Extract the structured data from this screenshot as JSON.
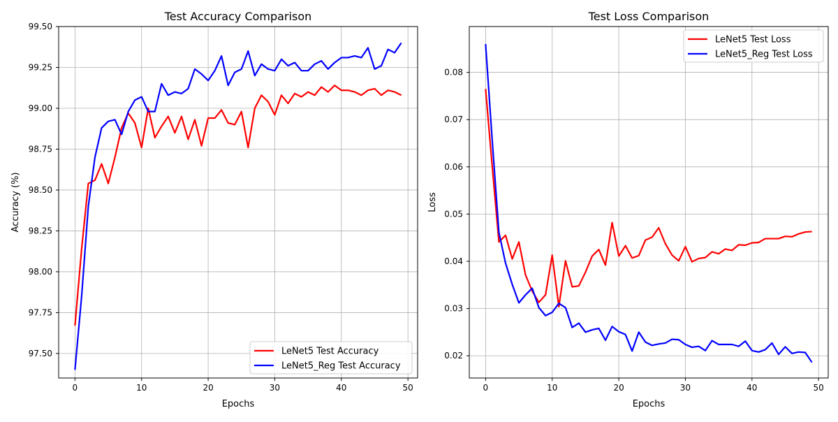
{
  "chart_data": [
    {
      "type": "line",
      "title": "Test Accuracy Comparison",
      "xlabel": "Epochs",
      "ylabel": "Accuracy (%)",
      "xlim": [
        -2.45,
        51.45
      ],
      "ylim": [
        97.35,
        99.5
      ],
      "xticks": [
        0,
        10,
        20,
        30,
        40,
        50
      ],
      "yticks": [
        97.5,
        97.75,
        98.0,
        98.25,
        98.5,
        98.75,
        99.0,
        99.25,
        99.5
      ],
      "ytick_labels": [
        "97.50",
        "97.75",
        "98.00",
        "98.25",
        "98.50",
        "98.75",
        "99.00",
        "99.25",
        "99.50"
      ],
      "grid": true,
      "legend_position": "lower-right",
      "x": [
        0,
        1,
        2,
        3,
        4,
        5,
        6,
        7,
        8,
        9,
        10,
        11,
        12,
        13,
        14,
        15,
        16,
        17,
        18,
        19,
        20,
        21,
        22,
        23,
        24,
        25,
        26,
        27,
        28,
        29,
        30,
        31,
        32,
        33,
        34,
        35,
        36,
        37,
        38,
        39,
        40,
        41,
        42,
        43,
        44,
        45,
        46,
        47,
        48,
        49
      ],
      "series": [
        {
          "name": "LeNet5 Test Accuracy",
          "color": "#ff0000",
          "values": [
            97.67,
            98.14,
            98.54,
            98.56,
            98.66,
            98.54,
            98.7,
            98.88,
            98.97,
            98.91,
            98.76,
            99.0,
            98.82,
            98.89,
            98.95,
            98.85,
            98.95,
            98.81,
            98.93,
            98.77,
            98.94,
            98.94,
            98.99,
            98.91,
            98.9,
            98.98,
            98.76,
            99.0,
            99.08,
            99.04,
            98.96,
            99.08,
            99.03,
            99.09,
            99.07,
            99.1,
            99.08,
            99.13,
            99.1,
            99.14,
            99.11,
            99.11,
            99.1,
            99.08,
            99.11,
            99.12,
            99.08,
            99.11,
            99.1,
            99.08
          ]
        },
        {
          "name": "LeNet5_Reg Test Accuracy",
          "color": "#0000ff",
          "values": [
            97.4,
            97.85,
            98.4,
            98.7,
            98.88,
            98.92,
            98.93,
            98.84,
            98.98,
            99.05,
            99.07,
            98.98,
            98.98,
            99.15,
            99.08,
            99.1,
            99.09,
            99.12,
            99.24,
            99.21,
            99.17,
            99.23,
            99.32,
            99.14,
            99.22,
            99.24,
            99.35,
            99.2,
            99.27,
            99.24,
            99.23,
            99.3,
            99.26,
            99.28,
            99.23,
            99.23,
            99.27,
            99.29,
            99.24,
            99.28,
            99.31,
            99.31,
            99.32,
            99.31,
            99.37,
            99.24,
            99.26,
            99.36,
            99.34,
            99.4
          ]
        }
      ]
    },
    {
      "type": "line",
      "title": "Test Loss Comparison",
      "xlabel": "Epochs",
      "ylabel": "Loss",
      "xlim": [
        -2.45,
        51.45
      ],
      "ylim": [
        0.0153,
        0.0897
      ],
      "xticks": [
        0,
        10,
        20,
        30,
        40,
        50
      ],
      "yticks": [
        0.02,
        0.03,
        0.04,
        0.05,
        0.06,
        0.07,
        0.08
      ],
      "ytick_labels": [
        "0.02",
        "0.03",
        "0.04",
        "0.05",
        "0.06",
        "0.07",
        "0.08"
      ],
      "grid": true,
      "legend_position": "upper-right",
      "x": [
        0,
        1,
        2,
        3,
        4,
        5,
        6,
        7,
        8,
        9,
        10,
        11,
        12,
        13,
        14,
        15,
        16,
        17,
        18,
        19,
        20,
        21,
        22,
        23,
        24,
        25,
        26,
        27,
        28,
        29,
        30,
        31,
        32,
        33,
        34,
        35,
        36,
        37,
        38,
        39,
        40,
        41,
        42,
        43,
        44,
        45,
        46,
        47,
        48,
        49
      ],
      "series": [
        {
          "name": "LeNet5 Test Loss",
          "color": "#ff0000",
          "values": [
            0.0765,
            0.06,
            0.0441,
            0.0455,
            0.0405,
            0.0441,
            0.0371,
            0.0337,
            0.0313,
            0.0329,
            0.0413,
            0.0304,
            0.0401,
            0.0346,
            0.0348,
            0.0377,
            0.0411,
            0.0425,
            0.0392,
            0.0482,
            0.0411,
            0.0433,
            0.0407,
            0.0412,
            0.0445,
            0.0451,
            0.0471,
            0.0437,
            0.0413,
            0.0401,
            0.0431,
            0.0399,
            0.0406,
            0.0408,
            0.042,
            0.0416,
            0.0426,
            0.0423,
            0.0435,
            0.0434,
            0.0439,
            0.044,
            0.0448,
            0.0448,
            0.0448,
            0.0453,
            0.0452,
            0.0458,
            0.0462,
            0.0463
          ]
        },
        {
          "name": "LeNet5_Reg Test Loss",
          "color": "#0000ff",
          "values": [
            0.086,
            0.0655,
            0.0461,
            0.0396,
            0.0351,
            0.0312,
            0.0329,
            0.0343,
            0.0302,
            0.0285,
            0.0292,
            0.0311,
            0.0302,
            0.026,
            0.0269,
            0.025,
            0.0255,
            0.0258,
            0.0233,
            0.0262,
            0.0251,
            0.0245,
            0.021,
            0.025,
            0.0229,
            0.0222,
            0.0225,
            0.0227,
            0.0235,
            0.0234,
            0.0224,
            0.0218,
            0.022,
            0.0211,
            0.0232,
            0.0224,
            0.0224,
            0.0224,
            0.022,
            0.0231,
            0.0211,
            0.0208,
            0.0213,
            0.0227,
            0.0203,
            0.0219,
            0.0205,
            0.0208,
            0.0207,
            0.0186
          ]
        }
      ]
    }
  ]
}
